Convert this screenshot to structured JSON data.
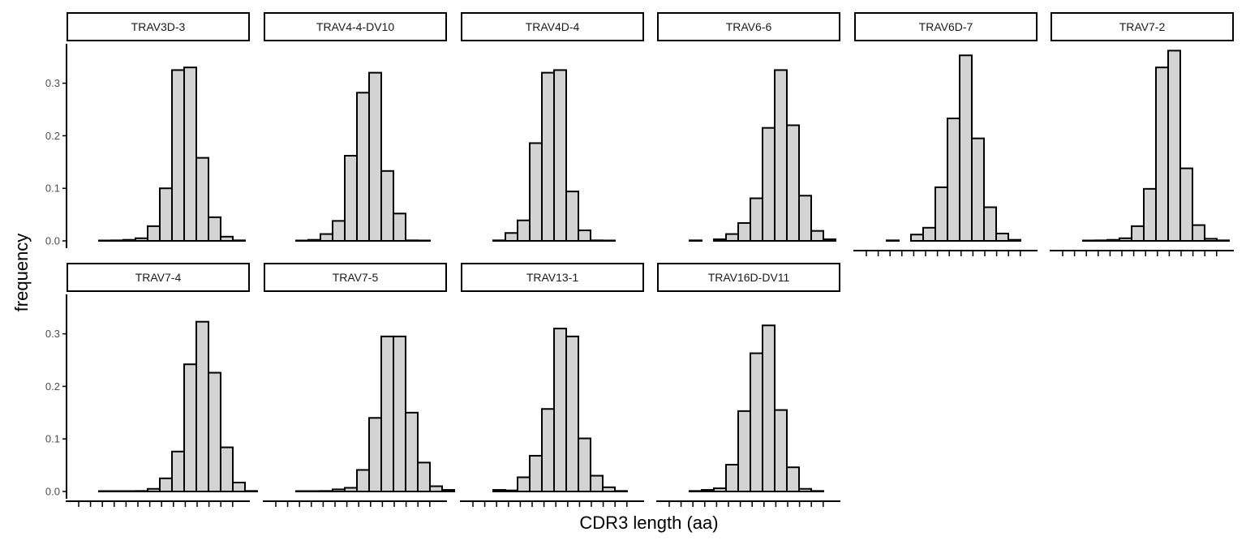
{
  "chart_data": {
    "type": "bar",
    "xlabel": "CDR3 length (aa)",
    "ylabel": "frequency",
    "ylim": [
      0,
      0.375
    ],
    "yticks": [
      0.0,
      0.1,
      0.2,
      0.3
    ],
    "ytick_labels": [
      "0.0",
      "0.1",
      "0.2",
      "0.3"
    ],
    "n_bins": 15,
    "bar_fill": "#d3d3d3",
    "bar_stroke": "#000000",
    "grid": false,
    "facets": [
      {
        "name": "TRAV3D-3",
        "values": [
          0,
          0.001,
          0.002,
          0.005,
          0.028,
          0.1,
          0.325,
          0.33,
          0.158,
          0.045,
          0.008,
          0.001,
          null,
          null,
          null
        ]
      },
      {
        "name": "TRAV4-4-DV10",
        "values": [
          0.0005,
          0.002,
          0.013,
          0.038,
          0.162,
          0.282,
          0.32,
          0.133,
          0.052,
          0.001,
          0.0005,
          null,
          null,
          null,
          null
        ]
      },
      {
        "name": "TRAV4D-4",
        "values": [
          0.001,
          0.015,
          0.039,
          0.186,
          0.32,
          0.325,
          0.094,
          0.02,
          0.001,
          0.0005,
          null,
          null,
          null,
          null,
          null
        ]
      },
      {
        "name": "TRAV6-6",
        "values": [
          0.001,
          null,
          0.003,
          0.013,
          0.034,
          0.081,
          0.215,
          0.325,
          0.22,
          0.086,
          0.019,
          0.003,
          null,
          null,
          null
        ]
      },
      {
        "name": "TRAV6D-7",
        "values": [
          0.001,
          null,
          0.012,
          0.025,
          0.102,
          0.233,
          0.353,
          0.195,
          0.064,
          0.014,
          0.002,
          null,
          null,
          null,
          null
        ]
      },
      {
        "name": "TRAV7-2",
        "values": [
          0.0005,
          0.001,
          0.002,
          0.005,
          0.028,
          0.099,
          0.33,
          0.362,
          0.138,
          0.03,
          0.004,
          0.001,
          null,
          null,
          null
        ]
      },
      {
        "name": "TRAV7-4",
        "values": [
          0.0005,
          0.0005,
          0.0005,
          0.001,
          0.005,
          0.025,
          0.076,
          0.242,
          0.323,
          0.226,
          0.084,
          0.017,
          0.001,
          null,
          null
        ]
      },
      {
        "name": "TRAV7-5",
        "values": [
          0.0005,
          0.0005,
          0.001,
          0.004,
          0.007,
          0.041,
          0.14,
          0.295,
          0.295,
          0.15,
          0.055,
          0.01,
          0.003,
          null,
          null
        ]
      },
      {
        "name": "TRAV13-1",
        "values": [
          0.003,
          0.002,
          0.027,
          0.068,
          0.157,
          0.31,
          0.295,
          0.101,
          0.03,
          0.008,
          0.001,
          null,
          null,
          null,
          null
        ]
      },
      {
        "name": "TRAV16D-DV11",
        "values": [
          0.001,
          0.003,
          0.006,
          0.051,
          0.153,
          0.263,
          0.316,
          0.155,
          0.046,
          0.005,
          0.001,
          null,
          null,
          null,
          null
        ]
      }
    ]
  }
}
